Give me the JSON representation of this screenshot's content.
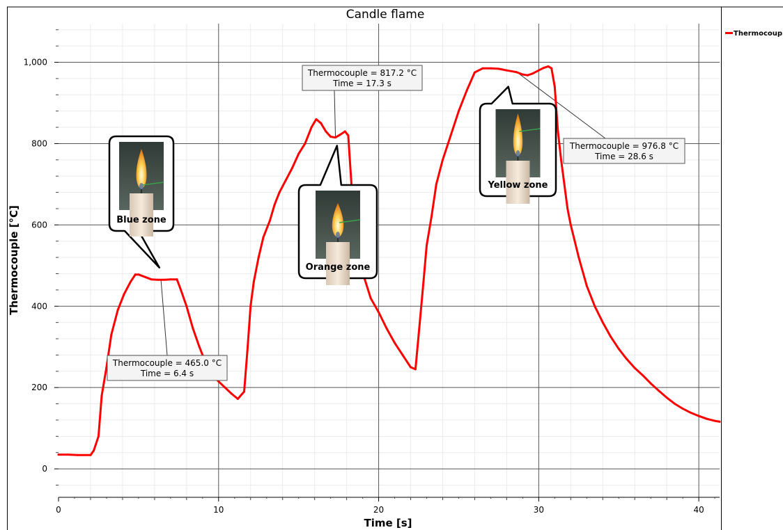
{
  "chart_data": {
    "type": "line",
    "title": "Candle flame",
    "xlabel": "Time [s]",
    "ylabel": "Thermocouple [°C]",
    "xlim": [
      0,
      41.3
    ],
    "ylim": [
      -70,
      1095
    ],
    "x_ticks": [
      0,
      10,
      20,
      30,
      40
    ],
    "x_tick_labels": [
      "0",
      "10",
      "20",
      "30",
      "40"
    ],
    "y_ticks": [
      0,
      200,
      400,
      600,
      800,
      1000
    ],
    "y_tick_labels": [
      "0",
      "200",
      "400",
      "600",
      "800",
      "1,000"
    ],
    "grid": true,
    "legend": {
      "position": "top-right",
      "entries": [
        "Thermocoup"
      ]
    },
    "series": [
      {
        "name": "Thermocoup",
        "color": "#ff0000",
        "x": [
          0,
          0.6,
          1.2,
          2.0,
          2.2,
          2.5,
          2.7,
          3.0,
          3.3,
          3.7,
          4.1,
          4.5,
          4.8,
          5.0,
          5.4,
          5.8,
          6.2,
          6.6,
          7.0,
          7.4,
          7.6,
          8.0,
          8.4,
          8.8,
          9.2,
          9.6,
          10.0,
          10.4,
          10.8,
          11.2,
          11.6,
          11.8,
          12.0,
          12.2,
          12.5,
          12.8,
          13.2,
          13.5,
          13.8,
          14.2,
          14.6,
          15.0,
          15.4,
          15.8,
          16.1,
          16.4,
          16.7,
          17.0,
          17.3,
          17.6,
          17.9,
          18.1,
          18.3,
          18.5,
          18.8,
          19.1,
          19.5,
          20.0,
          20.5,
          21.0,
          21.5,
          22.0,
          22.3,
          22.5,
          22.8,
          23.0,
          23.3,
          23.6,
          24.0,
          24.5,
          25.0,
          25.5,
          26.0,
          26.5,
          27.0,
          27.5,
          28.0,
          28.6,
          29.0,
          29.3,
          29.6,
          30.0,
          30.3,
          30.6,
          30.8,
          31.0,
          31.2,
          31.4,
          31.6,
          31.8,
          32.0,
          32.5,
          33.0,
          33.5,
          34.0,
          34.5,
          35.0,
          35.5,
          36.0,
          36.5,
          37.0,
          37.5,
          38.0,
          38.5,
          39.0,
          39.5,
          40.0,
          40.5,
          41.0,
          41.3
        ],
        "y": [
          35,
          35,
          34,
          34,
          45,
          80,
          180,
          250,
          330,
          390,
          430,
          460,
          478,
          478,
          472,
          466,
          465,
          465,
          466,
          466,
          445,
          400,
          345,
          300,
          260,
          230,
          215,
          200,
          185,
          172,
          190,
          290,
          400,
          460,
          520,
          570,
          610,
          650,
          680,
          710,
          740,
          775,
          800,
          840,
          860,
          850,
          830,
          817,
          815,
          822,
          830,
          820,
          700,
          600,
          530,
          470,
          420,
          385,
          345,
          310,
          280,
          250,
          245,
          330,
          460,
          550,
          620,
          700,
          760,
          820,
          880,
          930,
          975,
          985,
          985,
          984,
          980,
          976,
          970,
          968,
          972,
          980,
          986,
          990,
          985,
          940,
          830,
          760,
          700,
          640,
          600,
          520,
          450,
          400,
          360,
          325,
          295,
          270,
          248,
          230,
          210,
          192,
          175,
          160,
          148,
          138,
          130,
          123,
          118,
          116
        ]
      }
    ],
    "annotations": [
      {
        "text": "Thermocouple = 465.0 °C",
        "text2": "Time = 6.4 s",
        "x": 6.4,
        "y": 465.0
      },
      {
        "text": "Thermocouple = 817.2 °C",
        "text2": "Time = 17.3 s",
        "x": 17.3,
        "y": 817.2
      },
      {
        "text": "Thermocouple = 976.8 °C",
        "text2": "Time = 28.6 s",
        "x": 28.6,
        "y": 976.8
      }
    ],
    "callouts": [
      {
        "label": "Blue zone",
        "flame": "blue",
        "x": 6.3,
        "y": 495
      },
      {
        "label": "Orange zone",
        "flame": "orange",
        "x": 17.4,
        "y": 795
      },
      {
        "label": "Yellow zone",
        "flame": "yellow",
        "x": 28.1,
        "y": 940
      }
    ]
  }
}
